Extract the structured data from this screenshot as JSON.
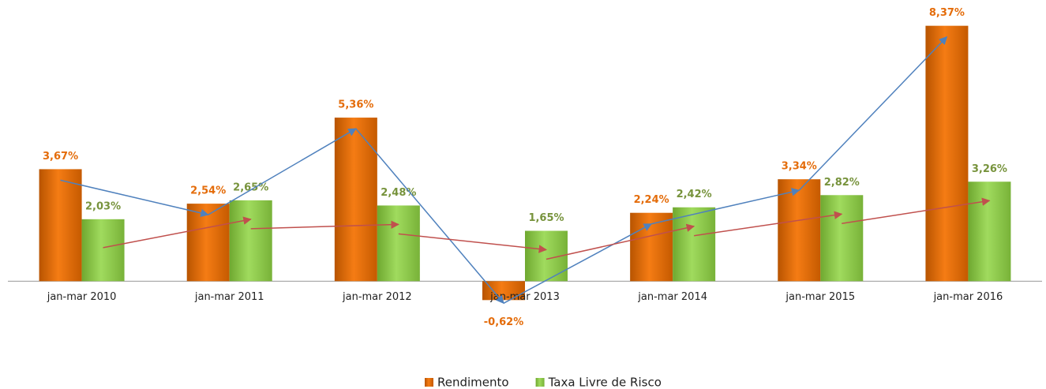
{
  "chart_data": {
    "type": "bar",
    "categories": [
      "jan-mar 2010",
      "jan-mar 2011",
      "jan-mar 2012",
      "jan-mar 2013",
      "jan-mar 2014",
      "jan-mar 2015",
      "jan-mar 2016"
    ],
    "series": [
      {
        "name": "Rendimento",
        "color": "#f07810",
        "label_color": "#e46c0a",
        "trend_color": "#4f81bd",
        "values": [
          3.67,
          2.54,
          5.36,
          -0.62,
          2.24,
          3.34,
          8.37
        ],
        "value_labels": [
          "3,67%",
          "2,54%",
          "5,36%",
          "-0,62%",
          "2,24%",
          "3,34%",
          "8,37%"
        ]
      },
      {
        "name": "Taxa Livre de Risco",
        "color": "#92d050",
        "label_color": "#77933c",
        "trend_color": "#c0504d",
        "values": [
          2.03,
          2.65,
          2.48,
          1.65,
          2.42,
          2.82,
          3.26
        ],
        "value_labels": [
          "2,03%",
          "2,65%",
          "2,48%",
          "1,65%",
          "2,42%",
          "2,82%",
          "3,26%"
        ]
      }
    ],
    "ylim": [
      -1,
      9
    ],
    "legend": "bottom"
  }
}
